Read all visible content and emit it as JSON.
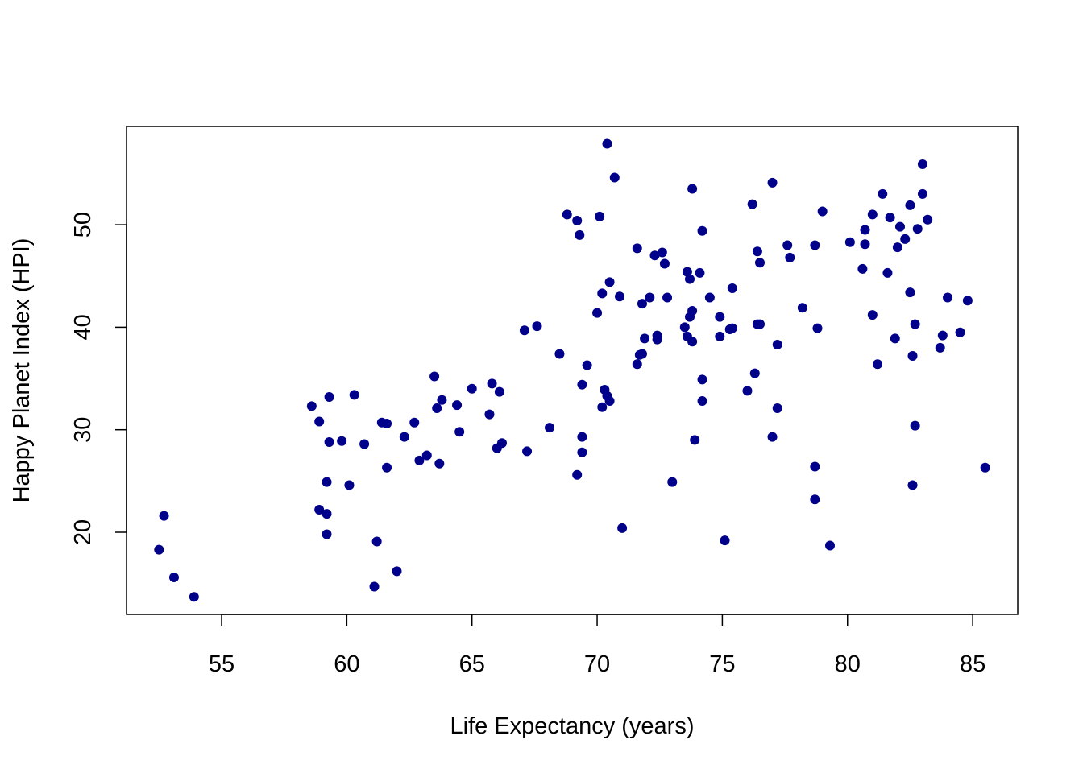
{
  "chart_data": {
    "type": "scatter",
    "title": "",
    "xlabel": "Life Expectancy (years)",
    "ylabel": "Happy Planet Index (HPI)",
    "xlim": [
      51.2,
      86.8
    ],
    "ylim": [
      12.0,
      59.6
    ],
    "xticks": [
      55,
      60,
      65,
      70,
      75,
      80,
      85
    ],
    "yticks": [
      20,
      30,
      40,
      50
    ],
    "grid": false,
    "point_color": "#00008B",
    "points": [
      [
        52.5,
        18.3
      ],
      [
        52.7,
        21.6
      ],
      [
        53.1,
        15.6
      ],
      [
        53.9,
        13.7
      ],
      [
        58.6,
        32.3
      ],
      [
        58.9,
        30.8
      ],
      [
        59.3,
        33.2
      ],
      [
        59.3,
        28.8
      ],
      [
        58.9,
        22.2
      ],
      [
        59.2,
        24.9
      ],
      [
        59.2,
        21.8
      ],
      [
        59.2,
        19.8
      ],
      [
        59.8,
        28.9
      ],
      [
        60.1,
        24.6
      ],
      [
        60.3,
        33.4
      ],
      [
        60.7,
        28.6
      ],
      [
        61.2,
        19.1
      ],
      [
        61.1,
        14.7
      ],
      [
        61.4,
        30.7
      ],
      [
        61.6,
        30.6
      ],
      [
        61.6,
        26.3
      ],
      [
        62.0,
        16.2
      ],
      [
        62.3,
        29.3
      ],
      [
        62.7,
        30.7
      ],
      [
        62.9,
        27.0
      ],
      [
        63.2,
        27.5
      ],
      [
        63.5,
        35.2
      ],
      [
        63.6,
        32.1
      ],
      [
        63.8,
        32.9
      ],
      [
        63.7,
        26.7
      ],
      [
        64.4,
        32.4
      ],
      [
        64.5,
        29.8
      ],
      [
        65.0,
        34.0
      ],
      [
        65.7,
        31.5
      ],
      [
        65.8,
        34.5
      ],
      [
        66.1,
        33.7
      ],
      [
        66.0,
        28.2
      ],
      [
        66.2,
        28.7
      ],
      [
        67.2,
        27.9
      ],
      [
        67.1,
        39.7
      ],
      [
        67.6,
        40.1
      ],
      [
        68.1,
        30.2
      ],
      [
        68.5,
        37.4
      ],
      [
        68.8,
        51.0
      ],
      [
        69.2,
        50.4
      ],
      [
        69.3,
        49.0
      ],
      [
        69.2,
        25.6
      ],
      [
        69.4,
        34.4
      ],
      [
        69.4,
        29.3
      ],
      [
        69.4,
        27.8
      ],
      [
        69.6,
        36.3
      ],
      [
        70.0,
        41.4
      ],
      [
        70.1,
        50.8
      ],
      [
        70.2,
        43.3
      ],
      [
        70.3,
        33.9
      ],
      [
        70.2,
        32.2
      ],
      [
        70.4,
        33.3
      ],
      [
        70.5,
        32.8
      ],
      [
        70.5,
        44.4
      ],
      [
        70.4,
        57.9
      ],
      [
        70.7,
        54.6
      ],
      [
        70.9,
        43.0
      ],
      [
        71.0,
        20.4
      ],
      [
        71.6,
        47.7
      ],
      [
        71.6,
        36.4
      ],
      [
        71.7,
        37.3
      ],
      [
        71.8,
        37.4
      ],
      [
        71.8,
        42.3
      ],
      [
        71.9,
        38.9
      ],
      [
        72.1,
        42.9
      ],
      [
        72.3,
        47.0
      ],
      [
        72.4,
        39.2
      ],
      [
        72.4,
        38.8
      ],
      [
        72.6,
        47.3
      ],
      [
        72.7,
        46.2
      ],
      [
        72.8,
        42.9
      ],
      [
        73.0,
        24.9
      ],
      [
        73.5,
        40.0
      ],
      [
        73.6,
        45.4
      ],
      [
        73.7,
        44.7
      ],
      [
        73.6,
        39.1
      ],
      [
        73.7,
        41.0
      ],
      [
        73.8,
        38.6
      ],
      [
        73.8,
        41.6
      ],
      [
        73.8,
        53.5
      ],
      [
        73.9,
        29.0
      ],
      [
        74.1,
        45.3
      ],
      [
        74.2,
        49.4
      ],
      [
        74.2,
        34.9
      ],
      [
        74.2,
        32.8
      ],
      [
        74.5,
        42.9
      ],
      [
        74.9,
        41.0
      ],
      [
        74.9,
        39.1
      ],
      [
        75.1,
        19.2
      ],
      [
        75.3,
        39.8
      ],
      [
        75.4,
        43.8
      ],
      [
        75.4,
        39.9
      ],
      [
        76.0,
        33.8
      ],
      [
        76.2,
        52.0
      ],
      [
        76.3,
        35.5
      ],
      [
        76.4,
        47.4
      ],
      [
        76.5,
        46.3
      ],
      [
        76.4,
        40.3
      ],
      [
        76.5,
        40.3
      ],
      [
        77.0,
        29.3
      ],
      [
        77.0,
        54.1
      ],
      [
        77.2,
        38.3
      ],
      [
        77.2,
        32.1
      ],
      [
        77.6,
        48.0
      ],
      [
        77.7,
        46.8
      ],
      [
        78.2,
        41.9
      ],
      [
        78.7,
        48.0
      ],
      [
        78.8,
        39.9
      ],
      [
        78.7,
        26.4
      ],
      [
        78.7,
        23.2
      ],
      [
        79.0,
        51.3
      ],
      [
        79.3,
        18.7
      ],
      [
        80.1,
        48.3
      ],
      [
        80.6,
        45.7
      ],
      [
        80.7,
        48.1
      ],
      [
        80.7,
        49.5
      ],
      [
        81.0,
        51.0
      ],
      [
        81.0,
        41.2
      ],
      [
        81.2,
        36.4
      ],
      [
        81.4,
        53.0
      ],
      [
        81.6,
        45.3
      ],
      [
        81.7,
        50.7
      ],
      [
        81.9,
        38.9
      ],
      [
        82.0,
        47.8
      ],
      [
        82.1,
        49.8
      ],
      [
        82.3,
        48.6
      ],
      [
        82.5,
        51.9
      ],
      [
        82.5,
        43.4
      ],
      [
        82.7,
        40.3
      ],
      [
        82.6,
        37.2
      ],
      [
        82.7,
        30.4
      ],
      [
        82.6,
        24.6
      ],
      [
        82.8,
        49.6
      ],
      [
        83.0,
        55.9
      ],
      [
        83.0,
        53.0
      ],
      [
        83.2,
        50.5
      ],
      [
        83.7,
        38.0
      ],
      [
        83.8,
        39.2
      ],
      [
        84.0,
        42.9
      ],
      [
        84.5,
        39.5
      ],
      [
        84.8,
        42.6
      ],
      [
        85.5,
        26.3
      ]
    ]
  }
}
